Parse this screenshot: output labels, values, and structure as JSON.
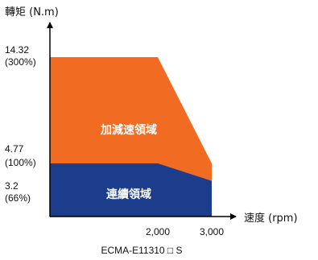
{
  "chart_data": {
    "type": "area",
    "ylabel": "轉矩 (N.m)",
    "xlabel": "速度 (rpm)",
    "caption": "ECMA-E11310 □ S",
    "x_ticks": [
      {
        "value": 2000,
        "label": "2,000"
      },
      {
        "value": 3000,
        "label": "3,000"
      }
    ],
    "y_ticks": [
      {
        "value": 14.32,
        "label": "14.32",
        "sublabel": "(300%)"
      },
      {
        "value": 4.77,
        "label": "4.77",
        "sublabel": "(100%)"
      },
      {
        "value": 3.2,
        "label": "3.2",
        "sublabel": "(66%)"
      }
    ],
    "xlim": [
      0,
      3000
    ],
    "ylim": [
      0,
      17
    ],
    "series": [
      {
        "name": "加減速領域",
        "color": "#f26b22",
        "points": [
          [
            0,
            14.32
          ],
          [
            2000,
            14.32
          ],
          [
            3000,
            4.77
          ],
          [
            3000,
            0
          ],
          [
            0,
            0
          ]
        ]
      },
      {
        "name": "連續領域",
        "color": "#1c3d8c",
        "points": [
          [
            0,
            4.77
          ],
          [
            2000,
            4.77
          ],
          [
            3000,
            3.2
          ],
          [
            3000,
            0
          ],
          [
            0,
            0
          ]
        ]
      }
    ]
  }
}
